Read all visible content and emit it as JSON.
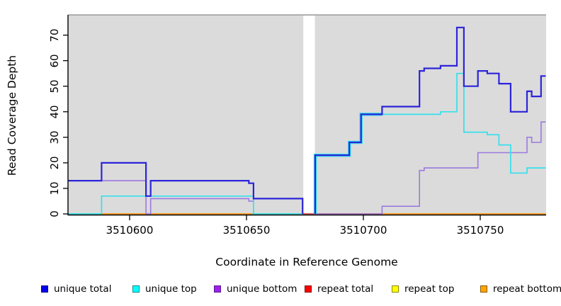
{
  "figure": {
    "y_axis": {
      "label": "Read Coverage Depth",
      "ticks": [
        0,
        10,
        20,
        30,
        40,
        50,
        60,
        70
      ]
    },
    "x_axis": {
      "label": "Coordinate in Reference Genome",
      "ticks": [
        3510600,
        3510650,
        3510700,
        3510750
      ]
    },
    "legend": [
      {
        "label": "unique total",
        "fill": "#0000EE",
        "border": "#00008B"
      },
      {
        "label": "unique top",
        "fill": "#00FFFF",
        "border": "#008B8B"
      },
      {
        "label": "unique bottom",
        "fill": "#A020F0",
        "border": "#551A8B"
      },
      {
        "label": "repeat total",
        "fill": "#FF0000",
        "border": "#8B0000"
      },
      {
        "label": "repeat top",
        "fill": "#FFFF00",
        "border": "#8B8B00"
      },
      {
        "label": "repeat bottom",
        "fill": "#FFA500",
        "border": "#8B5A00"
      }
    ],
    "panel_bg": "#DBDBDB",
    "panel_top_border": "#8A8A8A"
  },
  "chart_data": {
    "type": "line",
    "style": "step",
    "title": "",
    "xlabel": "Coordinate in Reference Genome",
    "ylabel": "Read Coverage Depth",
    "xlim": [
      3510573.5,
      3510778
    ],
    "ylim": [
      0,
      78
    ],
    "x_ticks": [
      3510600,
      3510650,
      3510700,
      3510750
    ],
    "y_ticks": [
      0,
      10,
      20,
      30,
      40,
      50,
      60,
      70
    ],
    "grid": false,
    "legend_position": "bottom",
    "gap_region": {
      "from": 3510674,
      "to": 3510679.4
    },
    "halo_until": 3510708,
    "series": [
      {
        "name": "repeat top",
        "color": "#F5F500",
        "width": 1.6,
        "runs": [
          {
            "end": 3510778,
            "points": [
              [
                3510573.5,
                0
              ]
            ]
          }
        ]
      },
      {
        "name": "repeat total",
        "color": "#E03030",
        "width": 1.6,
        "runs": [
          {
            "end": 3510778,
            "points": [
              [
                3510573.5,
                0
              ]
            ]
          }
        ]
      },
      {
        "name": "repeat bottom",
        "color": "#FF9E1E",
        "width": 1.8,
        "runs": [
          {
            "end": 3510778,
            "points": [
              [
                3510573.5,
                0
              ]
            ]
          }
        ]
      },
      {
        "name": "unique bottom",
        "color": "#9B79DF",
        "width": 1.6,
        "runs": [
          {
            "end": 3510674,
            "points": [
              [
                3510573.5,
                13
              ],
              [
                3510607,
                0
              ],
              [
                3510609,
                6
              ],
              [
                3510651,
                5
              ],
              [
                3510653,
                6
              ],
              [
                3510674,
                0
              ]
            ]
          },
          {
            "end": 3510778,
            "points": [
              [
                3510679.4,
                0
              ],
              [
                3510708,
                3
              ],
              [
                3510724,
                17
              ],
              [
                3510726,
                18
              ],
              [
                3510749,
                24
              ],
              [
                3510770,
                30
              ],
              [
                3510772,
                28
              ],
              [
                3510776,
                36
              ]
            ]
          }
        ]
      },
      {
        "name": "unique top",
        "color": "#35E0EC",
        "width": 1.7,
        "runs": [
          {
            "end": 3510674,
            "points": [
              [
                3510573.5,
                0
              ],
              [
                3510588,
                7
              ],
              [
                3510653,
                0
              ]
            ]
          },
          {
            "end": 3510778,
            "points": [
              [
                3510679.4,
                0
              ],
              [
                3510679.4,
                23
              ],
              [
                3510694,
                28
              ],
              [
                3510699,
                39
              ],
              [
                3510733,
                40
              ],
              [
                3510740,
                55
              ],
              [
                3510743,
                32
              ],
              [
                3510753,
                31
              ],
              [
                3510758,
                27
              ],
              [
                3510763,
                16
              ],
              [
                3510770,
                18
              ]
            ]
          }
        ]
      },
      {
        "name": "unique total",
        "color": "#2C24D9",
        "width": 2.2,
        "runs": [
          {
            "end": 3510674,
            "points": [
              [
                3510573.5,
                13
              ],
              [
                3510588,
                20
              ],
              [
                3510607,
                7
              ],
              [
                3510609,
                13
              ],
              [
                3510651,
                12
              ],
              [
                3510653,
                6
              ],
              [
                3510674,
                0
              ]
            ]
          },
          {
            "end": 3510778,
            "points": [
              [
                3510679.4,
                0
              ],
              [
                3510679.4,
                23
              ],
              [
                3510694,
                28
              ],
              [
                3510699,
                39
              ],
              [
                3510708,
                42
              ],
              [
                3510724,
                56
              ],
              [
                3510726,
                57
              ],
              [
                3510733,
                58
              ],
              [
                3510740,
                73
              ],
              [
                3510743,
                50
              ],
              [
                3510749,
                56
              ],
              [
                3510753,
                55
              ],
              [
                3510758,
                51
              ],
              [
                3510763,
                40
              ],
              [
                3510770,
                48
              ],
              [
                3510772,
                46
              ],
              [
                3510776,
                54
              ]
            ]
          }
        ]
      }
    ],
    "baseline_overlap_segments": [
      {
        "from": 3510573.5,
        "to": 3510588,
        "color": "#7CC47C"
      },
      {
        "from": 3510652,
        "to": 3510674,
        "color": "#7CC47C"
      },
      {
        "from": 3510674,
        "to": 3510708,
        "color": "#DC5464"
      }
    ]
  }
}
